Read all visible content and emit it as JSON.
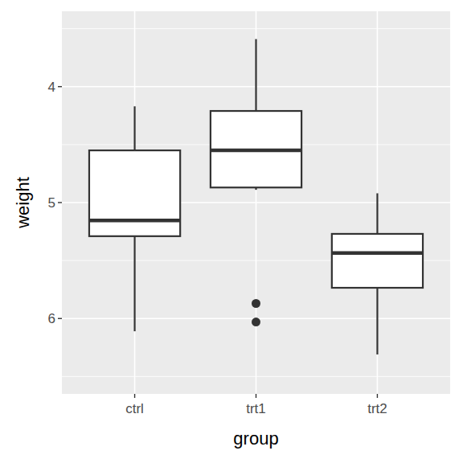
{
  "chart_data": {
    "type": "box",
    "x_label": "group",
    "y_label": "weight",
    "categories": [
      "ctrl",
      "trt1",
      "trt2"
    ],
    "min": [
      4.17,
      3.59,
      4.92
    ],
    "q1": [
      4.55,
      4.21,
      5.27
    ],
    "median": [
      5.155,
      4.55,
      5.435
    ],
    "q3": [
      5.29,
      4.87,
      5.735
    ],
    "max": [
      6.11,
      4.89,
      6.31
    ],
    "outliers": [
      [],
      [
        5.87,
        6.03
      ],
      []
    ],
    "ylim": [
      6.65,
      3.35
    ],
    "yticks": [
      4,
      5,
      6
    ],
    "grid": true
  }
}
